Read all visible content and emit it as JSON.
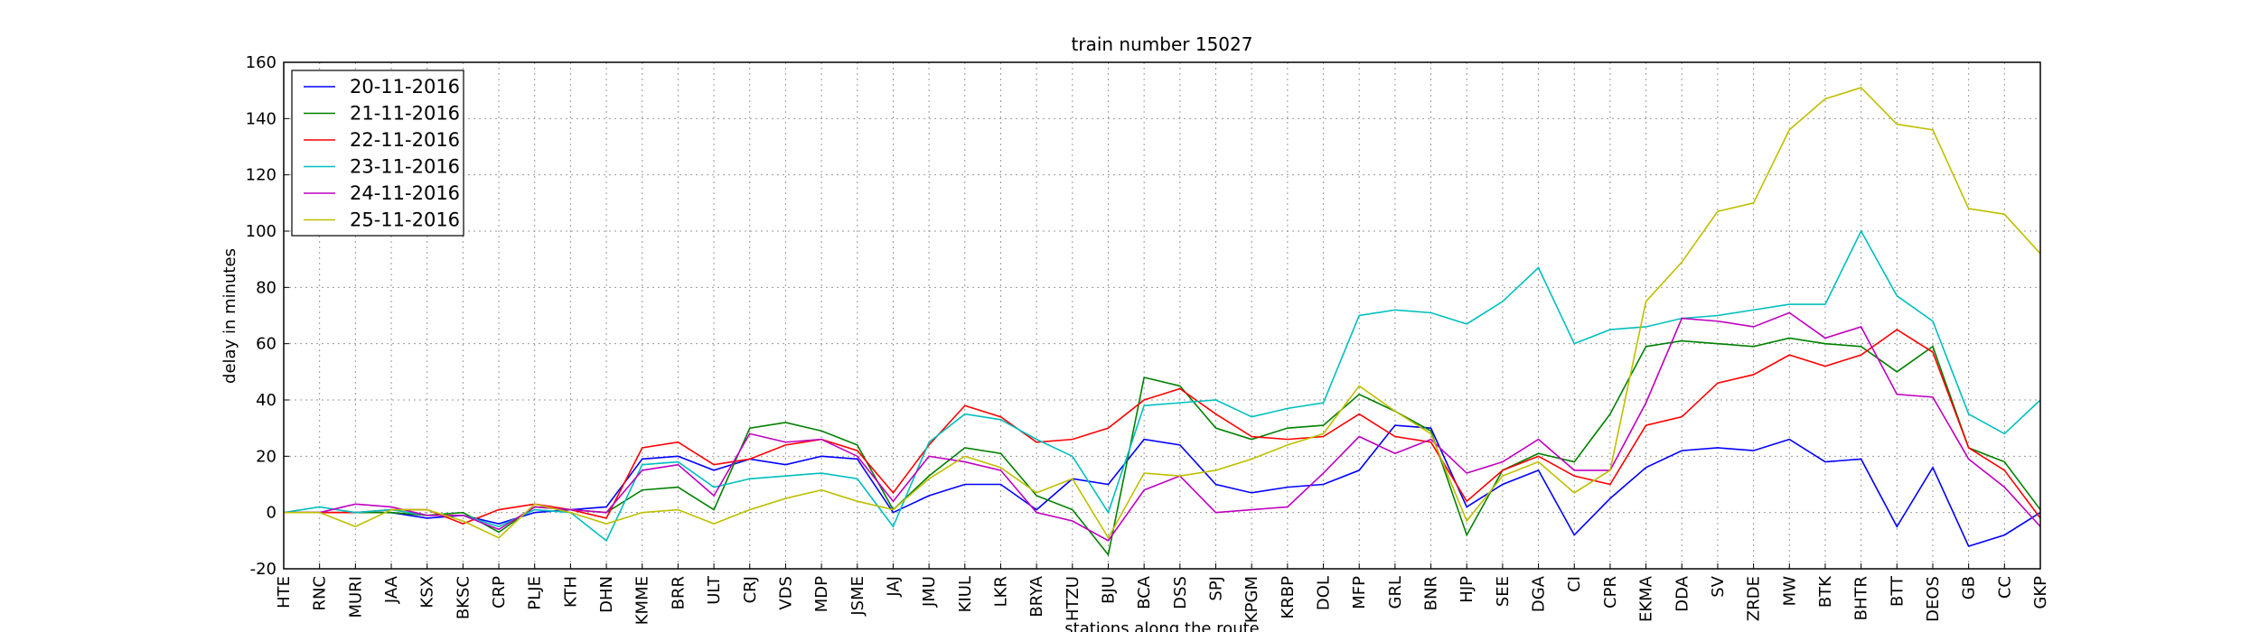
{
  "chart_data": {
    "type": "line",
    "title": "train number 15027",
    "xlabel": "stations along the route",
    "ylabel": "delay in minutes",
    "categories": [
      "HTE",
      "RNC",
      "MURI",
      "JAA",
      "KSX",
      "BKSC",
      "CRP",
      "PLJE",
      "KTH",
      "DHN",
      "KMME",
      "BRR",
      "ULT",
      "CRJ",
      "VDS",
      "MDP",
      "JSME",
      "JAJ",
      "JMU",
      "KIUL",
      "LKR",
      "BRYA",
      "HTZU",
      "BJU",
      "BCA",
      "DSS",
      "SPJ",
      "KPGM",
      "KRBP",
      "DOL",
      "MFP",
      "GRL",
      "BNR",
      "HJP",
      "SEE",
      "DGA",
      "CI",
      "CPR",
      "EKMA",
      "DDA",
      "SV",
      "ZRDE",
      "MW",
      "BTK",
      "BHTR",
      "BTT",
      "DEOS",
      "GB",
      "CC",
      "GKP"
    ],
    "series": [
      {
        "name": "20-11-2016",
        "color": "#0000ff",
        "values": [
          0,
          0,
          0,
          0,
          -2,
          -1,
          -4,
          0,
          1,
          2,
          19,
          20,
          15,
          19,
          17,
          20,
          19,
          0,
          6,
          10,
          10,
          1,
          12,
          10,
          26,
          24,
          10,
          7,
          9,
          10,
          15,
          31,
          30,
          2,
          10,
          15,
          -8,
          5,
          16,
          22,
          23,
          22,
          26,
          18,
          19,
          -5,
          16,
          -12,
          -8,
          0
        ]
      },
      {
        "name": "21-11-2016",
        "color": "#008000",
        "values": [
          0,
          0,
          0,
          0,
          -1,
          0,
          -7,
          2,
          1,
          0,
          8,
          9,
          1,
          30,
          32,
          29,
          24,
          1,
          13,
          23,
          21,
          6,
          1,
          -15,
          48,
          45,
          30,
          26,
          30,
          31,
          42,
          36,
          29,
          -8,
          15,
          21,
          18,
          35,
          59,
          61,
          60,
          59,
          62,
          60,
          59,
          50,
          59,
          23,
          18,
          1
        ]
      },
      {
        "name": "22-11-2016",
        "color": "#ff0000",
        "values": [
          0,
          0,
          0,
          1,
          1,
          -4,
          1,
          3,
          1,
          -2,
          23,
          25,
          17,
          19,
          24,
          26,
          22,
          7,
          24,
          38,
          34,
          25,
          26,
          30,
          40,
          44,
          35,
          27,
          26,
          27,
          35,
          27,
          25,
          4,
          15,
          20,
          13,
          10,
          31,
          34,
          46,
          49,
          56,
          52,
          56,
          65,
          57,
          23,
          15,
          -2
        ]
      },
      {
        "name": "23-11-2016",
        "color": "#00bfbf",
        "values": [
          0,
          2,
          0,
          1,
          -1,
          -1,
          -5,
          1,
          0,
          -10,
          17,
          18,
          9,
          12,
          13,
          14,
          12,
          -5,
          25,
          35,
          33,
          26,
          20,
          0,
          38,
          39,
          40,
          34,
          37,
          39,
          70,
          72,
          71,
          67,
          75,
          87,
          60,
          65,
          66,
          69,
          70,
          72,
          74,
          74,
          100,
          77,
          68,
          35,
          28,
          40
        ]
      },
      {
        "name": "24-11-2016",
        "color": "#bf00bf",
        "values": [
          0,
          0,
          3,
          2,
          -1,
          -1,
          -6,
          2,
          1,
          0,
          15,
          17,
          6,
          28,
          25,
          26,
          20,
          4,
          20,
          18,
          15,
          0,
          -3,
          -10,
          8,
          13,
          0,
          1,
          2,
          14,
          27,
          21,
          26,
          14,
          18,
          26,
          15,
          15,
          39,
          69,
          68,
          66,
          71,
          62,
          66,
          42,
          41,
          19,
          9,
          -5
        ]
      },
      {
        "name": "25-11-2016",
        "color": "#bfbf00",
        "values": [
          0,
          0,
          -5,
          1,
          1,
          -3,
          -9,
          3,
          0,
          -4,
          0,
          1,
          -4,
          1,
          5,
          8,
          4,
          1,
          12,
          20,
          16,
          7,
          12,
          -9,
          14,
          13,
          15,
          19,
          24,
          28,
          45,
          36,
          28,
          -3,
          13,
          18,
          7,
          15,
          75,
          89,
          107,
          110,
          136,
          147,
          151,
          138,
          136,
          108,
          106,
          92
        ]
      }
    ],
    "ylim": [
      -20,
      160
    ],
    "yticks": [
      -20,
      0,
      20,
      40,
      60,
      80,
      100,
      120,
      140,
      160
    ],
    "grid": true,
    "legend": "upper left"
  }
}
